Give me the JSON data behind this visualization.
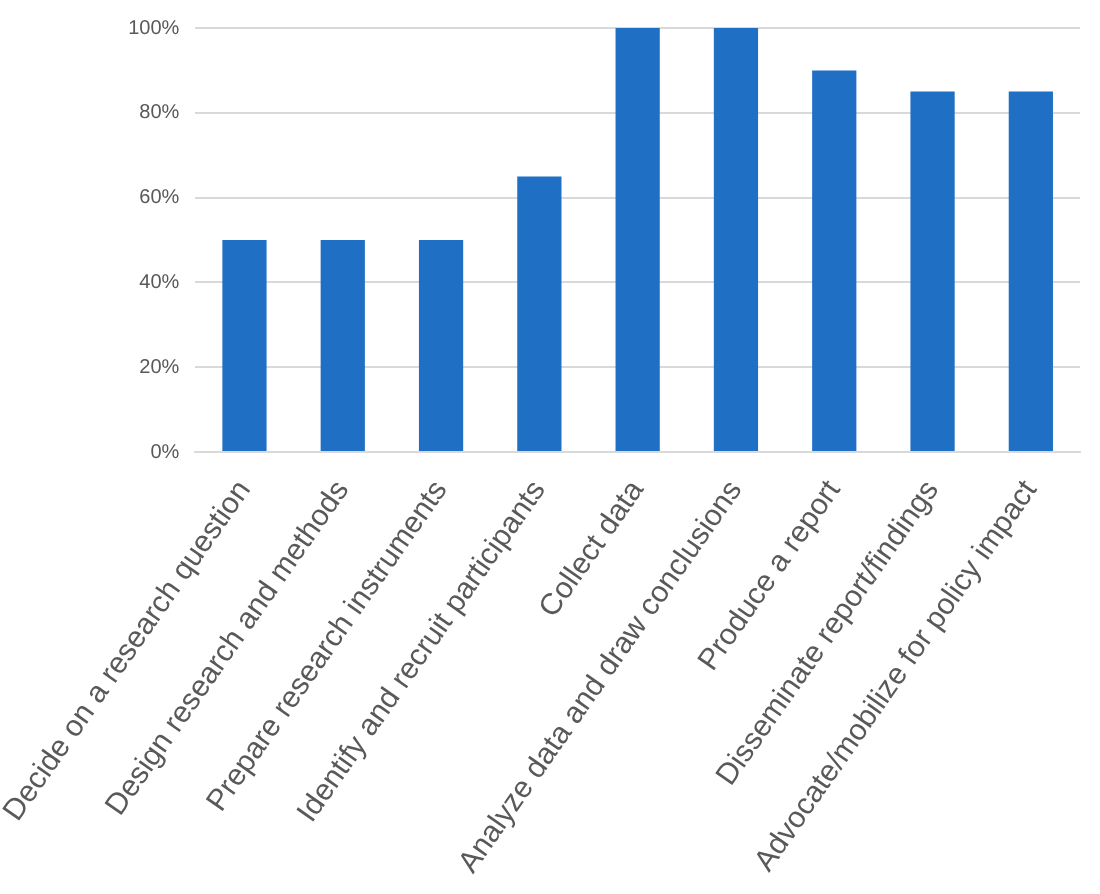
{
  "chart_data": {
    "type": "bar",
    "categories": [
      "Decide on a research question",
      "Design research and methods",
      "Prepare research instruments",
      "Identify and recruit participants",
      "Collect data",
      "Analyze data and draw conclusions",
      "Produce a report",
      "Disseminate report/findings",
      "Advocate/mobilize for policy impact"
    ],
    "values": [
      50,
      50,
      50,
      65,
      100,
      100,
      90,
      85,
      85
    ],
    "color": "#1f6fc5",
    "ylim": [
      0,
      100
    ],
    "yticks": [
      {
        "value": 0,
        "label": "0%"
      },
      {
        "value": 20,
        "label": "20%"
      },
      {
        "value": 40,
        "label": "40%"
      },
      {
        "value": 60,
        "label": "60%"
      },
      {
        "value": 80,
        "label": "80%"
      },
      {
        "value": 100,
        "label": "100%"
      }
    ],
    "grid": "y"
  }
}
